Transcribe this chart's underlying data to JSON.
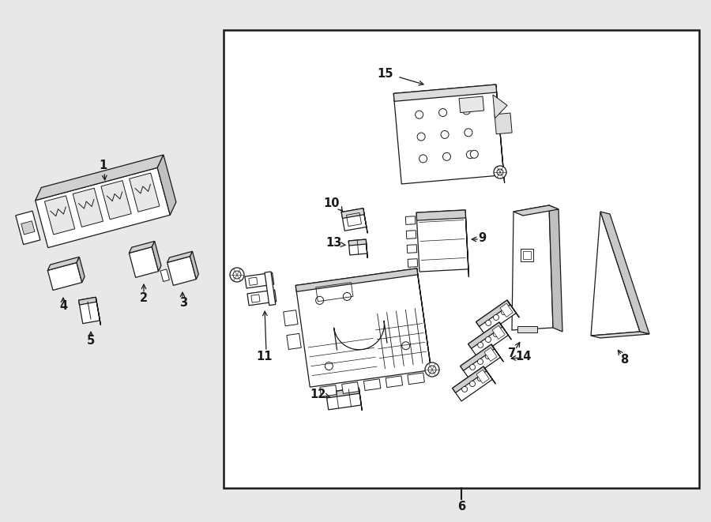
{
  "bg_color": "#e8e8e8",
  "box_facecolor": "white",
  "line_color": "#1a1a1a",
  "fig_width": 9.0,
  "fig_height": 6.61,
  "dpi": 100,
  "lw": 0.9
}
